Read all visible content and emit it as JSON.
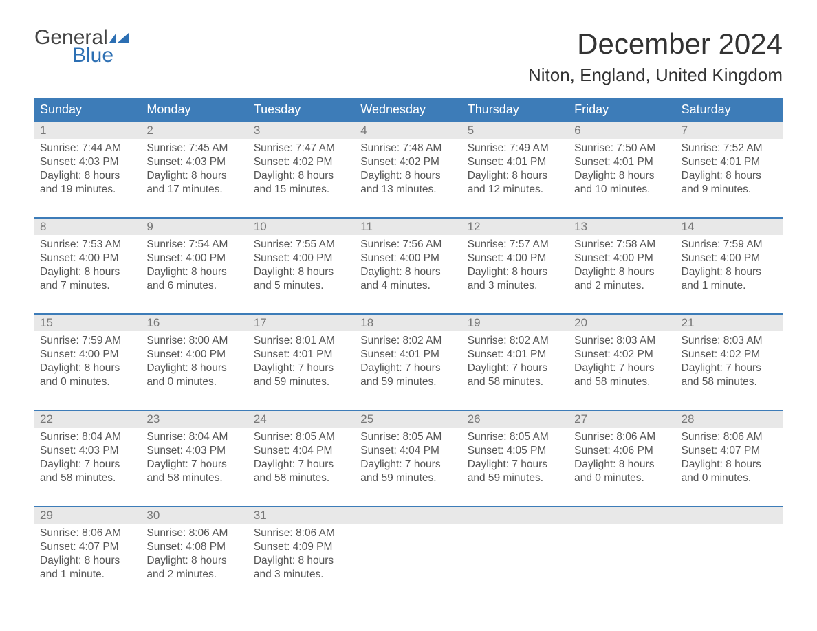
{
  "logo": {
    "general": "General",
    "blue": "Blue"
  },
  "title": "December 2024",
  "location": "Niton, England, United Kingdom",
  "colors": {
    "header_bg": "#3d7cb8",
    "header_text": "#ffffff",
    "daynum_bg": "#e8e8e8",
    "daynum_text": "#777777",
    "body_text": "#555555",
    "accent": "#2c6fb3",
    "background": "#ffffff"
  },
  "day_names": [
    "Sunday",
    "Monday",
    "Tuesday",
    "Wednesday",
    "Thursday",
    "Friday",
    "Saturday"
  ],
  "weeks": [
    {
      "nums": [
        "1",
        "2",
        "3",
        "4",
        "5",
        "6",
        "7"
      ],
      "cells": [
        {
          "sunrise": "Sunrise: 7:44 AM",
          "sunset": "Sunset: 4:03 PM",
          "d1": "Daylight: 8 hours",
          "d2": "and 19 minutes."
        },
        {
          "sunrise": "Sunrise: 7:45 AM",
          "sunset": "Sunset: 4:03 PM",
          "d1": "Daylight: 8 hours",
          "d2": "and 17 minutes."
        },
        {
          "sunrise": "Sunrise: 7:47 AM",
          "sunset": "Sunset: 4:02 PM",
          "d1": "Daylight: 8 hours",
          "d2": "and 15 minutes."
        },
        {
          "sunrise": "Sunrise: 7:48 AM",
          "sunset": "Sunset: 4:02 PM",
          "d1": "Daylight: 8 hours",
          "d2": "and 13 minutes."
        },
        {
          "sunrise": "Sunrise: 7:49 AM",
          "sunset": "Sunset: 4:01 PM",
          "d1": "Daylight: 8 hours",
          "d2": "and 12 minutes."
        },
        {
          "sunrise": "Sunrise: 7:50 AM",
          "sunset": "Sunset: 4:01 PM",
          "d1": "Daylight: 8 hours",
          "d2": "and 10 minutes."
        },
        {
          "sunrise": "Sunrise: 7:52 AM",
          "sunset": "Sunset: 4:01 PM",
          "d1": "Daylight: 8 hours",
          "d2": "and 9 minutes."
        }
      ]
    },
    {
      "nums": [
        "8",
        "9",
        "10",
        "11",
        "12",
        "13",
        "14"
      ],
      "cells": [
        {
          "sunrise": "Sunrise: 7:53 AM",
          "sunset": "Sunset: 4:00 PM",
          "d1": "Daylight: 8 hours",
          "d2": "and 7 minutes."
        },
        {
          "sunrise": "Sunrise: 7:54 AM",
          "sunset": "Sunset: 4:00 PM",
          "d1": "Daylight: 8 hours",
          "d2": "and 6 minutes."
        },
        {
          "sunrise": "Sunrise: 7:55 AM",
          "sunset": "Sunset: 4:00 PM",
          "d1": "Daylight: 8 hours",
          "d2": "and 5 minutes."
        },
        {
          "sunrise": "Sunrise: 7:56 AM",
          "sunset": "Sunset: 4:00 PM",
          "d1": "Daylight: 8 hours",
          "d2": "and 4 minutes."
        },
        {
          "sunrise": "Sunrise: 7:57 AM",
          "sunset": "Sunset: 4:00 PM",
          "d1": "Daylight: 8 hours",
          "d2": "and 3 minutes."
        },
        {
          "sunrise": "Sunrise: 7:58 AM",
          "sunset": "Sunset: 4:00 PM",
          "d1": "Daylight: 8 hours",
          "d2": "and 2 minutes."
        },
        {
          "sunrise": "Sunrise: 7:59 AM",
          "sunset": "Sunset: 4:00 PM",
          "d1": "Daylight: 8 hours",
          "d2": "and 1 minute."
        }
      ]
    },
    {
      "nums": [
        "15",
        "16",
        "17",
        "18",
        "19",
        "20",
        "21"
      ],
      "cells": [
        {
          "sunrise": "Sunrise: 7:59 AM",
          "sunset": "Sunset: 4:00 PM",
          "d1": "Daylight: 8 hours",
          "d2": "and 0 minutes."
        },
        {
          "sunrise": "Sunrise: 8:00 AM",
          "sunset": "Sunset: 4:00 PM",
          "d1": "Daylight: 8 hours",
          "d2": "and 0 minutes."
        },
        {
          "sunrise": "Sunrise: 8:01 AM",
          "sunset": "Sunset: 4:01 PM",
          "d1": "Daylight: 7 hours",
          "d2": "and 59 minutes."
        },
        {
          "sunrise": "Sunrise: 8:02 AM",
          "sunset": "Sunset: 4:01 PM",
          "d1": "Daylight: 7 hours",
          "d2": "and 59 minutes."
        },
        {
          "sunrise": "Sunrise: 8:02 AM",
          "sunset": "Sunset: 4:01 PM",
          "d1": "Daylight: 7 hours",
          "d2": "and 58 minutes."
        },
        {
          "sunrise": "Sunrise: 8:03 AM",
          "sunset": "Sunset: 4:02 PM",
          "d1": "Daylight: 7 hours",
          "d2": "and 58 minutes."
        },
        {
          "sunrise": "Sunrise: 8:03 AM",
          "sunset": "Sunset: 4:02 PM",
          "d1": "Daylight: 7 hours",
          "d2": "and 58 minutes."
        }
      ]
    },
    {
      "nums": [
        "22",
        "23",
        "24",
        "25",
        "26",
        "27",
        "28"
      ],
      "cells": [
        {
          "sunrise": "Sunrise: 8:04 AM",
          "sunset": "Sunset: 4:03 PM",
          "d1": "Daylight: 7 hours",
          "d2": "and 58 minutes."
        },
        {
          "sunrise": "Sunrise: 8:04 AM",
          "sunset": "Sunset: 4:03 PM",
          "d1": "Daylight: 7 hours",
          "d2": "and 58 minutes."
        },
        {
          "sunrise": "Sunrise: 8:05 AM",
          "sunset": "Sunset: 4:04 PM",
          "d1": "Daylight: 7 hours",
          "d2": "and 58 minutes."
        },
        {
          "sunrise": "Sunrise: 8:05 AM",
          "sunset": "Sunset: 4:04 PM",
          "d1": "Daylight: 7 hours",
          "d2": "and 59 minutes."
        },
        {
          "sunrise": "Sunrise: 8:05 AM",
          "sunset": "Sunset: 4:05 PM",
          "d1": "Daylight: 7 hours",
          "d2": "and 59 minutes."
        },
        {
          "sunrise": "Sunrise: 8:06 AM",
          "sunset": "Sunset: 4:06 PM",
          "d1": "Daylight: 8 hours",
          "d2": "and 0 minutes."
        },
        {
          "sunrise": "Sunrise: 8:06 AM",
          "sunset": "Sunset: 4:07 PM",
          "d1": "Daylight: 8 hours",
          "d2": "and 0 minutes."
        }
      ]
    },
    {
      "nums": [
        "29",
        "30",
        "31",
        "",
        "",
        "",
        ""
      ],
      "cells": [
        {
          "sunrise": "Sunrise: 8:06 AM",
          "sunset": "Sunset: 4:07 PM",
          "d1": "Daylight: 8 hours",
          "d2": "and 1 minute."
        },
        {
          "sunrise": "Sunrise: 8:06 AM",
          "sunset": "Sunset: 4:08 PM",
          "d1": "Daylight: 8 hours",
          "d2": "and 2 minutes."
        },
        {
          "sunrise": "Sunrise: 8:06 AM",
          "sunset": "Sunset: 4:09 PM",
          "d1": "Daylight: 8 hours",
          "d2": "and 3 minutes."
        },
        {
          "sunrise": "",
          "sunset": "",
          "d1": "",
          "d2": ""
        },
        {
          "sunrise": "",
          "sunset": "",
          "d1": "",
          "d2": ""
        },
        {
          "sunrise": "",
          "sunset": "",
          "d1": "",
          "d2": ""
        },
        {
          "sunrise": "",
          "sunset": "",
          "d1": "",
          "d2": ""
        }
      ]
    }
  ]
}
